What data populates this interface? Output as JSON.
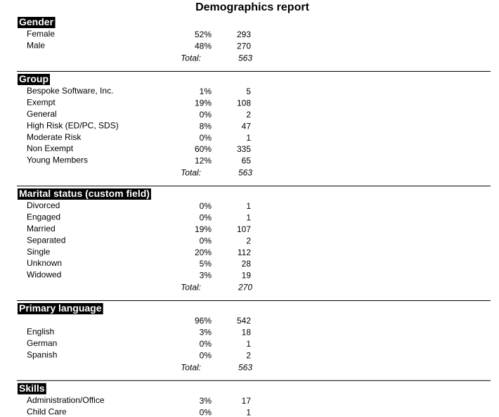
{
  "header": {
    "title": "Demographics report"
  },
  "sections": [
    {
      "title": "Gender",
      "total_label": "Total:",
      "total": 563,
      "rows": [
        {
          "label": "Female",
          "percent": "52%",
          "count": 293
        },
        {
          "label": "Male",
          "percent": "48%",
          "count": 270
        }
      ]
    },
    {
      "title": "Group",
      "total_label": "Total:",
      "total": 563,
      "rows": [
        {
          "label": "Bespoke Software, Inc.",
          "percent": "1%",
          "count": 5
        },
        {
          "label": "Exempt",
          "percent": "19%",
          "count": 108
        },
        {
          "label": "General",
          "percent": "0%",
          "count": 2
        },
        {
          "label": "High Risk (ED/PC, SDS)",
          "percent": "8%",
          "count": 47
        },
        {
          "label": "Moderate Risk",
          "percent": "0%",
          "count": 1
        },
        {
          "label": "Non Exempt",
          "percent": "60%",
          "count": 335
        },
        {
          "label": "Young Members",
          "percent": "12%",
          "count": 65
        }
      ]
    },
    {
      "title": "Marital status (custom field)",
      "total_label": "Total:",
      "total": 270,
      "rows": [
        {
          "label": "Divorced",
          "percent": "0%",
          "count": 1
        },
        {
          "label": "Engaged",
          "percent": "0%",
          "count": 1
        },
        {
          "label": "Married",
          "percent": "19%",
          "count": 107
        },
        {
          "label": "Separated",
          "percent": "0%",
          "count": 2
        },
        {
          "label": "Single",
          "percent": "20%",
          "count": 112
        },
        {
          "label": "Unknown",
          "percent": "5%",
          "count": 28
        },
        {
          "label": "Widowed",
          "percent": "3%",
          "count": 19
        }
      ]
    },
    {
      "title": "Primary language",
      "total_label": "Total:",
      "total": 563,
      "rows": [
        {
          "label": null,
          "percent": "96%",
          "count": 542
        },
        {
          "label": "English",
          "percent": "3%",
          "count": 18
        },
        {
          "label": "German",
          "percent": "0%",
          "count": 1
        },
        {
          "label": "Spanish",
          "percent": "0%",
          "count": 2
        }
      ]
    },
    {
      "title": "Skills",
      "rows": [
        {
          "label": "Administration/Office",
          "percent": "3%",
          "count": 17
        },
        {
          "label": "Child Care",
          "percent": "0%",
          "count": 1
        }
      ]
    }
  ]
}
